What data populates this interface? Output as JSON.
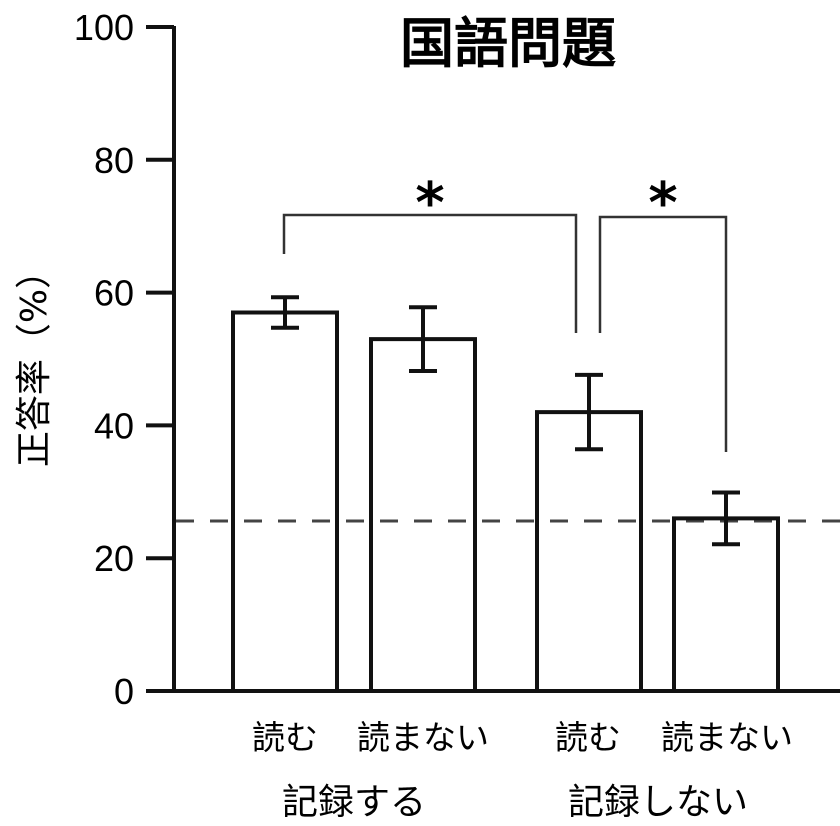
{
  "chart_data": {
    "type": "bar",
    "title": "国語問題",
    "xlabel": "",
    "ylabel": "正答率（%）",
    "ylim": [
      0,
      100
    ],
    "yticks": [
      0,
      20,
      40,
      60,
      80,
      100
    ],
    "grid": false,
    "legend": null,
    "categories": [
      "読む",
      "読まない",
      "読む",
      "読まない"
    ],
    "groups": [
      {
        "label": "記録する",
        "categories": [
          "読む",
          "読まない"
        ]
      },
      {
        "label": "記録しない",
        "categories": [
          "読む",
          "読まない"
        ]
      }
    ],
    "values": [
      57,
      53,
      42,
      26
    ],
    "errors": [
      2.3,
      4.8,
      5.6,
      3.9
    ],
    "reference_line": {
      "y": 25.6,
      "style": "dashed"
    },
    "annotations": [
      {
        "text": "*",
        "from_bar": 0,
        "to_bar": 2,
        "meaning": "significant difference"
      },
      {
        "text": "*",
        "from_bar": 2,
        "to_bar": 3,
        "meaning": "significant difference"
      }
    ]
  },
  "labels": {
    "title": "国語問題",
    "ylabel": "正答率（%）",
    "yticks": [
      "0",
      "20",
      "40",
      "60",
      "80",
      "100"
    ],
    "bars": [
      "読む",
      "読まない",
      "読む",
      "読まない"
    ],
    "groups": [
      "記録する",
      "記録しない"
    ],
    "star": "*"
  }
}
